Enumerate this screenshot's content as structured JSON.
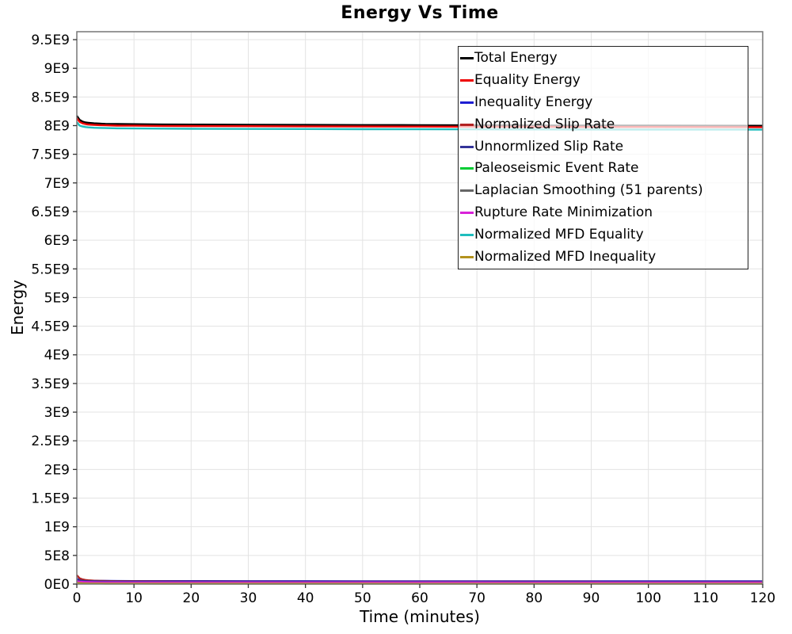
{
  "chart_data": {
    "type": "line",
    "title": "Energy Vs Time",
    "xlabel": "Time (minutes)",
    "ylabel": "Energy",
    "grid": true,
    "legend_position": "top-right-inside",
    "xlim": [
      0,
      120
    ],
    "ylim": [
      0,
      9638700000.0
    ],
    "x_ticks": [
      0,
      10,
      20,
      30,
      40,
      50,
      60,
      70,
      80,
      90,
      100,
      110,
      120
    ],
    "y_ticks": [
      {
        "value": 0,
        "label": "0E0"
      },
      {
        "value": 500000000.0,
        "label": "5E8"
      },
      {
        "value": 1000000000.0,
        "label": "1E9"
      },
      {
        "value": 1500000000.0,
        "label": "1.5E9"
      },
      {
        "value": 2000000000.0,
        "label": "2E9"
      },
      {
        "value": 2500000000.0,
        "label": "2.5E9"
      },
      {
        "value": 3000000000.0,
        "label": "3E9"
      },
      {
        "value": 3500000000.0,
        "label": "3.5E9"
      },
      {
        "value": 4000000000.0,
        "label": "4E9"
      },
      {
        "value": 4500000000.0,
        "label": "4.5E9"
      },
      {
        "value": 5000000000.0,
        "label": "5E9"
      },
      {
        "value": 5500000000.0,
        "label": "5.5E9"
      },
      {
        "value": 6000000000.0,
        "label": "6E9"
      },
      {
        "value": 6500000000.0,
        "label": "6.5E9"
      },
      {
        "value": 7000000000.0,
        "label": "7E9"
      },
      {
        "value": 7500000000.0,
        "label": "7.5E9"
      },
      {
        "value": 8000000000.0,
        "label": "8E9"
      },
      {
        "value": 8500000000.0,
        "label": "8.5E9"
      },
      {
        "value": 9000000000.0,
        "label": "9E9"
      },
      {
        "value": 9500000000.0,
        "label": "9.5E9"
      }
    ],
    "x": [
      0,
      0.5,
      1,
      1.5,
      2,
      3,
      4,
      5,
      7,
      10,
      15,
      20,
      30,
      40,
      50,
      60,
      70,
      80,
      90,
      100,
      110,
      120
    ],
    "series": [
      {
        "name": "Total Energy",
        "color": "#000000",
        "values": [
          8170000000.0,
          8100000000.0,
          8070000000.0,
          8055000000.0,
          8050000000.0,
          8040000000.0,
          8035000000.0,
          8030000000.0,
          8028000000.0,
          8025000000.0,
          8020000000.0,
          8018000000.0,
          8015000000.0,
          8012000000.0,
          8010000000.0,
          8008000000.0,
          8005000000.0,
          8003000000.0,
          8000000000.0,
          8000000000.0,
          7998000000.0,
          7997000000.0
        ]
      },
      {
        "name": "Equality Energy",
        "color": "#ee0000",
        "values": [
          8130000000.0,
          8065000000.0,
          8040000000.0,
          8028000000.0,
          8020000000.0,
          8012000000.0,
          8008000000.0,
          8005000000.0,
          8000000000.0,
          7998000000.0,
          7995000000.0,
          7993000000.0,
          7990000000.0,
          7988000000.0,
          7985000000.0,
          7983000000.0,
          7980000000.0,
          7979000000.0,
          7977000000.0,
          7976000000.0,
          7975000000.0,
          7974000000.0
        ]
      },
      {
        "name": "Inequality Energy",
        "color": "#1e1ed2",
        "values": [
          90000000.0,
          76000000.0,
          68000000.0,
          64000000.0,
          61000000.0,
          58000000.0,
          56000000.0,
          55000000.0,
          54000000.0,
          53000000.0,
          52000000.0,
          52000000.0,
          51000000.0,
          51000000.0,
          50000000.0,
          50000000.0,
          49000000.0,
          49000000.0,
          49000000.0,
          48000000.0,
          48000000.0,
          48000000.0
        ]
      },
      {
        "name": "Normalized Slip Rate",
        "color": "#b22222",
        "values": [
          155000000.0,
          100000000.0,
          82000000.0,
          72000000.0,
          66000000.0,
          60000000.0,
          57000000.0,
          54000000.0,
          51000000.0,
          49000000.0,
          47000000.0,
          46000000.0,
          44000000.0,
          43000000.0,
          43000000.0,
          42000000.0,
          42000000.0,
          41000000.0,
          41000000.0,
          40000000.0,
          40000000.0,
          40000000.0
        ]
      },
      {
        "name": "Unnormlized Slip Rate",
        "color": "#333399",
        "values": [
          75000000.0,
          63000000.0,
          57000000.0,
          53000000.0,
          50000000.0,
          48000000.0,
          46000000.0,
          45000000.0,
          44000000.0,
          43000000.0,
          42000000.0,
          42000000.0,
          41000000.0,
          41000000.0,
          40000000.0,
          40000000.0,
          40000000.0,
          39000000.0,
          39000000.0,
          39000000.0,
          39000000.0,
          38000000.0
        ]
      },
      {
        "name": "Paleoseismic Event Rate",
        "color": "#00cc33",
        "values": [
          45000000.0,
          37000000.0,
          32000000.0,
          29000000.0,
          27000000.0,
          25000000.0,
          24000000.0,
          23000000.0,
          23000000.0,
          22000000.0,
          21000000.0,
          21000000.0,
          21000000.0,
          20000000.0,
          20000000.0,
          20000000.0,
          20000000.0,
          19000000.0,
          19000000.0,
          19000000.0,
          19000000.0,
          19000000.0
        ]
      },
      {
        "name": "Laplacian Smoothing (51 parents)",
        "color": "#666666",
        "values": [
          30000000.0,
          26000000.0,
          23000000.0,
          21000000.0,
          20000000.0,
          18000000.0,
          18000000.0,
          17000000.0,
          17000000.0,
          16000000.0,
          16000000.0,
          15000000.0,
          15000000.0,
          15000000.0,
          14000000.0,
          14000000.0,
          14000000.0,
          14000000.0,
          14000000.0,
          13000000.0,
          13000000.0,
          13000000.0
        ]
      },
      {
        "name": "Rupture Rate Minimization",
        "color": "#d822d8",
        "values": [
          50000000.0,
          43000000.0,
          39000000.0,
          36000000.0,
          34000000.0,
          32000000.0,
          31000000.0,
          30000000.0,
          30000000.0,
          29000000.0,
          29000000.0,
          28000000.0,
          28000000.0,
          27000000.0,
          27000000.0,
          27000000.0,
          27000000.0,
          26000000.0,
          26000000.0,
          26000000.0,
          26000000.0,
          26000000.0
        ]
      },
      {
        "name": "Normalized MFD Equality",
        "color": "#1fbdbd",
        "values": [
          8060000000.0,
          8000000000.0,
          7985000000.0,
          7975000000.0,
          7970000000.0,
          7963000000.0,
          7960000000.0,
          7957000000.0,
          7953000000.0,
          7950000000.0,
          7948000000.0,
          7945000000.0,
          7942000000.0,
          7940000000.0,
          7938000000.0,
          7937000000.0,
          7935000000.0,
          7934000000.0,
          7932000000.0,
          7931000000.0,
          7930000000.0,
          7929000000.0
        ]
      },
      {
        "name": "Normalized MFD Inequality",
        "color": "#b3921e",
        "values": [
          20000000.0,
          16000000.0,
          13000000.0,
          11000000.0,
          10000000.0,
          9000000.0,
          9000000.0,
          8000000.0,
          8000000.0,
          8000000.0,
          7000000.0,
          7000000.0,
          7000000.0,
          7000000.0,
          7000000.0,
          6000000.0,
          6000000.0,
          6000000.0,
          6000000.0,
          6000000.0,
          6000000.0,
          6000000.0
        ]
      }
    ],
    "style": {
      "grid_color": "#e3e3e3",
      "frame_color": "#777777",
      "tick_color": "#333333",
      "line_width": 2.4
    }
  }
}
